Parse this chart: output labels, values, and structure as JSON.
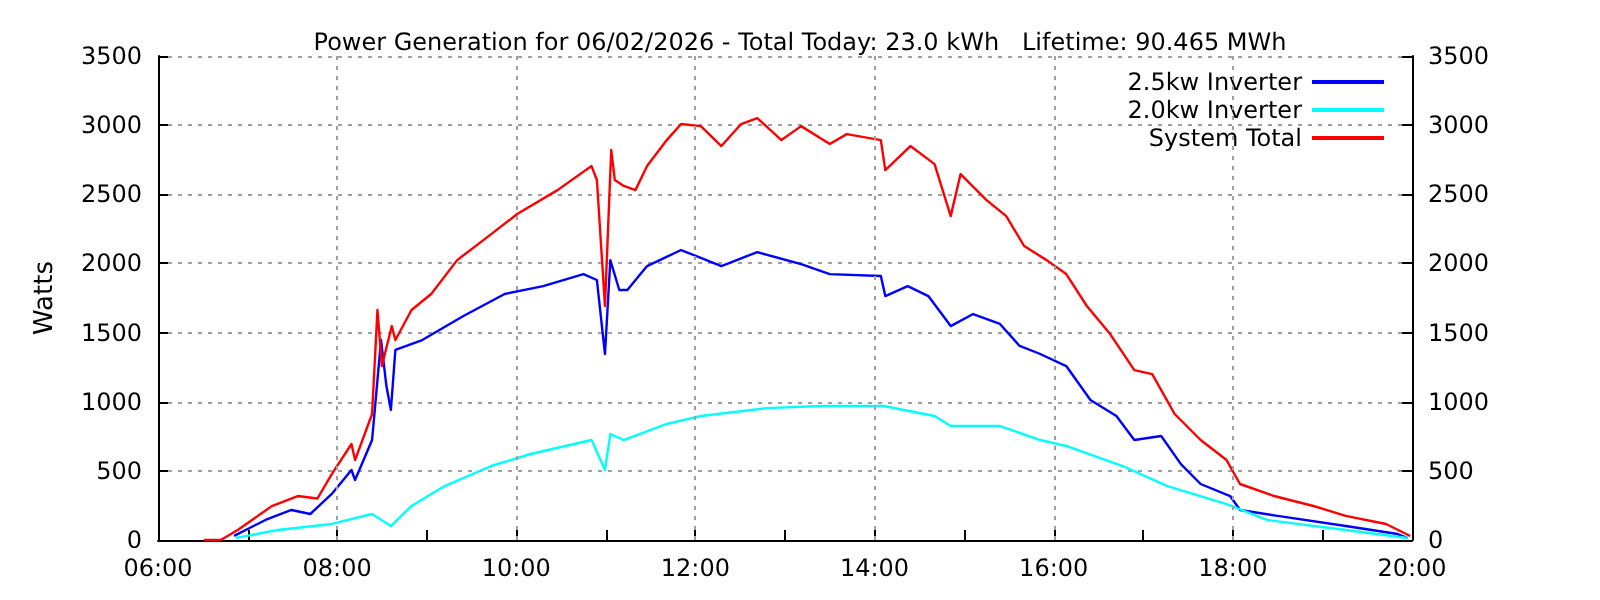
{
  "chart_data": {
    "type": "line",
    "title": "Power Generation for 06/02/2026 - Total Today: 23.0 kWh   Lifetime: 90.465 MWh",
    "ylabel": "Watts",
    "xlim": [
      6,
      20
    ],
    "xticks": [
      {
        "value": 6,
        "label": "06:00"
      },
      {
        "value": 7,
        "label": null
      },
      {
        "value": 8,
        "label": "08:00"
      },
      {
        "value": 9,
        "label": null
      },
      {
        "value": 10,
        "label": "10:00"
      },
      {
        "value": 11,
        "label": null
      },
      {
        "value": 12,
        "label": "12:00"
      },
      {
        "value": 13,
        "label": null
      },
      {
        "value": 14,
        "label": "14:00"
      },
      {
        "value": 15,
        "label": null
      },
      {
        "value": 16,
        "label": "16:00"
      },
      {
        "value": 17,
        "label": null
      },
      {
        "value": 18,
        "label": "18:00"
      },
      {
        "value": 19,
        "label": null
      },
      {
        "value": 20,
        "label": "20:00"
      }
    ],
    "ylim": [
      0,
      3500
    ],
    "yticks": [
      0,
      500,
      1000,
      1500,
      2000,
      2500,
      3000,
      3500
    ],
    "y2lim": [
      0,
      3500
    ],
    "y2ticks": [
      0,
      500,
      1000,
      1500,
      2000,
      2500,
      3000,
      3500
    ],
    "grid": true,
    "legend": "top right",
    "marker": "none",
    "line_style": "solid",
    "series": [
      {
        "name": "2.5kw Inverter",
        "color": "#0000ff",
        "x": [
          6.85,
          7.2,
          7.49,
          7.7,
          7.94,
          8.16,
          8.2,
          8.39,
          8.49,
          8.55,
          8.6,
          8.65,
          8.95,
          9.41,
          9.87,
          10.3,
          10.75,
          10.9,
          10.99,
          11.05,
          11.15,
          11.24,
          11.46,
          11.84,
          12.29,
          12.69,
          13.18,
          13.5,
          14.07,
          14.12,
          14.37,
          14.6,
          14.85,
          15.1,
          15.4,
          15.62,
          15.85,
          16.14,
          16.41,
          16.7,
          16.9,
          17.2,
          17.42,
          17.64,
          17.97,
          18.08,
          18.5,
          19.26,
          19.84,
          19.95
        ],
        "values": [
          30,
          145,
          217,
          188,
          333,
          506,
          434,
          723,
          1446,
          1113,
          940,
          1374,
          1446,
          1620,
          1779,
          1836,
          1923,
          1880,
          1345,
          2024,
          1808,
          1808,
          1981,
          2097,
          1981,
          2082,
          1995,
          1923,
          1909,
          1764,
          1836,
          1764,
          1547,
          1634,
          1562,
          1403,
          1345,
          1258,
          1012,
          897,
          723,
          752,
          549,
          405,
          318,
          217,
          174,
          101,
          43,
          14
        ]
      },
      {
        "name": "2.0kw Inverter",
        "color": "#00ffff",
        "x": [
          6.87,
          7.34,
          7.94,
          8.39,
          8.6,
          8.83,
          9.2,
          9.72,
          10.16,
          10.84,
          10.99,
          11.05,
          11.2,
          11.68,
          12.06,
          12.8,
          13.4,
          14.1,
          14.67,
          14.85,
          15.4,
          15.85,
          16.14,
          16.77,
          17.27,
          17.93,
          18.38,
          19.26,
          19.95
        ],
        "values": [
          15,
          72,
          116,
          188,
          101,
          246,
          390,
          535,
          622,
          723,
          506,
          766,
          723,
          839,
          897,
          954,
          969,
          969,
          897,
          824,
          824,
          723,
          680,
          535,
          390,
          260,
          145,
          72,
          14
        ]
      },
      {
        "name": "System Total",
        "color": "#ff0000",
        "x": [
          6.51,
          6.7,
          6.89,
          7.27,
          7.56,
          7.78,
          7.94,
          8.16,
          8.2,
          8.39,
          8.45,
          8.5,
          8.61,
          8.65,
          8.83,
          9.05,
          9.34,
          9.72,
          10.01,
          10.46,
          10.84,
          10.9,
          10.99,
          11.06,
          11.1,
          11.2,
          11.33,
          11.46,
          11.68,
          11.84,
          12.06,
          12.29,
          12.51,
          12.69,
          12.96,
          13.18,
          13.5,
          13.69,
          14.07,
          14.12,
          14.4,
          14.67,
          14.85,
          14.96,
          15.25,
          15.47,
          15.67,
          15.92,
          16.14,
          16.37,
          16.63,
          16.9,
          17.1,
          17.35,
          17.64,
          17.93,
          18.08,
          18.46,
          18.9,
          19.26,
          19.71,
          19.98
        ],
        "values": [
          0,
          0,
          72,
          245,
          318,
          300,
          477,
          694,
          578,
          911,
          1663,
          1258,
          1547,
          1446,
          1663,
          1779,
          2024,
          2212,
          2357,
          2530,
          2704,
          2603,
          1692,
          2820,
          2603,
          2560,
          2530,
          2704,
          2892,
          3008,
          2993,
          2849,
          3008,
          3051,
          2892,
          2993,
          2863,
          2935,
          2892,
          2675,
          2849,
          2718,
          2342,
          2646,
          2458,
          2342,
          2126,
          2024,
          1923,
          1692,
          1489,
          1229,
          1200,
          911,
          723,
          578,
          405,
          318,
          246,
          174,
          116,
          29
        ]
      }
    ]
  }
}
